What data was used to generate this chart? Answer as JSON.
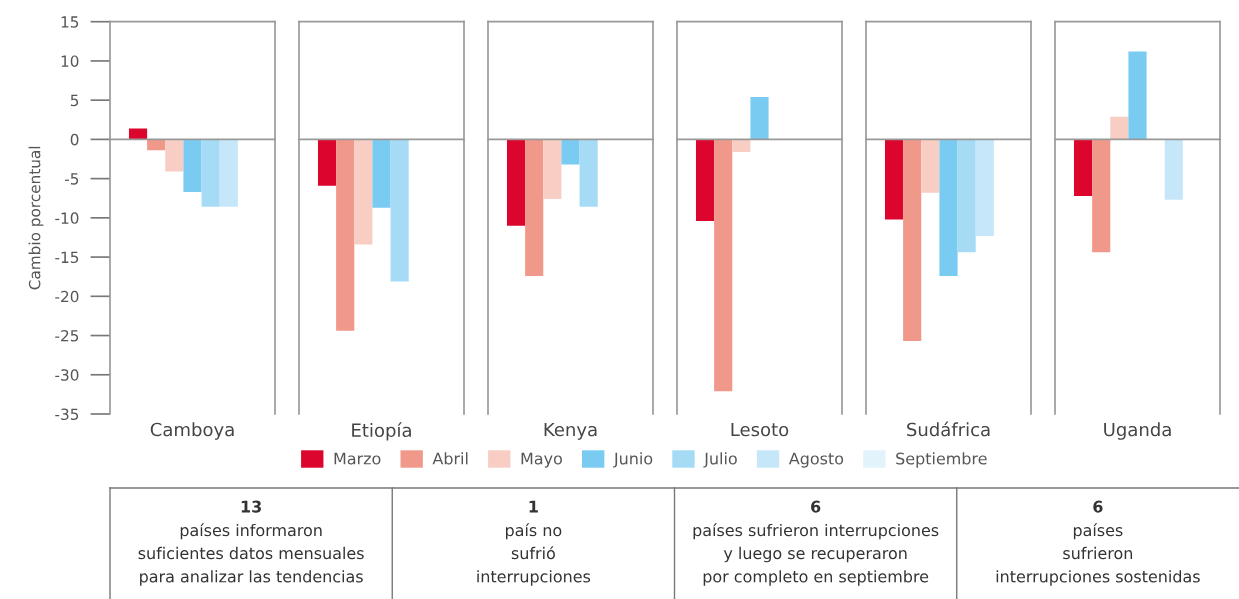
{
  "chart_data": [
    {
      "type": "bar",
      "categories": [
        "Camboya"
      ],
      "ylabel": "Cambio porcentual",
      "ylim": [
        -35,
        15
      ],
      "yticks": [
        -35,
        -30,
        -25,
        -20,
        -15,
        -10,
        -5,
        0,
        5,
        10,
        15
      ],
      "legend": "bottom",
      "ref_lines": [
        {
          "axis": "y",
          "value": 0,
          "color": "#999999"
        }
      ],
      "annotations": [
        "13\npaíses informaron\nsuficientes datos mensuales\npara analizar las tendencias",
        "1\npaís no\nsufrió\ninterrupciones",
        "6\npaíses sufrieron interrupciones\ny luego se recuperaron\npor completo en septiembre",
        "6\npaíses\nsufrieron\ninterrupciones sostenidas"
      ],
      "series": [
        {
          "name": "Marzo",
          "color": "#dc052d",
          "values": [
            1.4
          ]
        },
        {
          "name": "Abril",
          "color": "#f0998a",
          "values": [
            -1.4
          ]
        },
        {
          "name": "Mayo",
          "color": "#f8cdc4",
          "values": [
            -4.1
          ]
        },
        {
          "name": "Junio",
          "color": "#79cbf2",
          "values": [
            -6.7
          ]
        },
        {
          "name": "Julio",
          "color": "#a6dbf6",
          "values": [
            -8.6
          ]
        },
        {
          "name": "Agosto",
          "color": "#c6e7f9",
          "values": [
            -8.6
          ]
        },
        {
          "name": "Septiembre",
          "color": "#e2f3fc",
          "values": [
            null
          ]
        }
      ]
    },
    {
      "type": "bar",
      "categories": [
        "Etiopía"
      ],
      "ylim": [
        -35,
        15
      ],
      "tick_labels": "x",
      "ref_lines": [
        {
          "axis": "y",
          "value": 0,
          "color": "#999999"
        }
      ],
      "series": [
        {
          "color": "#dc052d",
          "values": [
            -5.9
          ]
        },
        {
          "color": "#f0998a",
          "values": [
            -24.4
          ]
        },
        {
          "color": "#f8cdc4",
          "values": [
            -13.4
          ]
        },
        {
          "color": "#79cbf2",
          "values": [
            -8.7
          ]
        },
        {
          "color": "#a6dbf6",
          "values": [
            -18.1
          ]
        },
        {
          "color": "#c6e7f9",
          "values": [
            null
          ]
        },
        {
          "color": "#e2f3fc",
          "values": [
            null
          ]
        }
      ]
    },
    {
      "type": "bar",
      "categories": [
        "Kenya"
      ],
      "ylim": [
        -35,
        15
      ],
      "tick_labels": "x",
      "ref_lines": [
        {
          "axis": "y",
          "value": 0,
          "color": "#999999"
        }
      ],
      "series": [
        {
          "color": "#dc052d",
          "values": [
            -11.0
          ]
        },
        {
          "color": "#f0998a",
          "values": [
            -17.4
          ]
        },
        {
          "color": "#f8cdc4",
          "values": [
            -7.6
          ]
        },
        {
          "color": "#79cbf2",
          "values": [
            -3.2
          ]
        },
        {
          "color": "#a6dbf6",
          "values": [
            -8.6
          ]
        },
        {
          "color": "#c6e7f9",
          "values": [
            null
          ]
        },
        {
          "color": "#e2f3fc",
          "values": [
            null
          ]
        }
      ]
    },
    {
      "type": "bar",
      "categories": [
        "Lesoto"
      ],
      "ylim": [
        -35,
        15
      ],
      "tick_labels": "x",
      "ref_lines": [
        {
          "axis": "y",
          "value": 0,
          "color": "#999999"
        }
      ],
      "series": [
        {
          "color": "#dc052d",
          "values": [
            -10.4
          ]
        },
        {
          "color": "#f0998a",
          "values": [
            -32.1
          ]
        },
        {
          "color": "#f8cdc4",
          "values": [
            -1.6
          ]
        },
        {
          "color": "#79cbf2",
          "values": [
            5.4
          ]
        },
        {
          "color": "#a6dbf6",
          "values": [
            null
          ]
        },
        {
          "color": "#c6e7f9",
          "values": [
            null
          ]
        },
        {
          "color": "#e2f3fc",
          "values": [
            null
          ]
        }
      ]
    },
    {
      "type": "bar",
      "categories": [
        "Sudáfrica"
      ],
      "ylim": [
        -35,
        15
      ],
      "tick_labels": "x",
      "ref_lines": [
        {
          "axis": "y",
          "value": 0,
          "color": "#999999"
        }
      ],
      "series": [
        {
          "color": "#dc052d",
          "values": [
            -10.2
          ]
        },
        {
          "color": "#f0998a",
          "values": [
            -25.7
          ]
        },
        {
          "color": "#f8cdc4",
          "values": [
            -6.8
          ]
        },
        {
          "color": "#79cbf2",
          "values": [
            -17.4
          ]
        },
        {
          "color": "#a6dbf6",
          "values": [
            -14.4
          ]
        },
        {
          "color": "#c6e7f9",
          "values": [
            -12.3
          ]
        },
        {
          "color": "#e2f3fc",
          "values": [
            null
          ]
        }
      ]
    },
    {
      "type": "bar",
      "categories": [
        "Uganda"
      ],
      "ylim": [
        -35,
        15
      ],
      "tick_labels": "x",
      "ref_lines": [
        {
          "axis": "y",
          "value": 0,
          "color": "#999999"
        }
      ],
      "series": [
        {
          "color": "#dc052d",
          "values": [
            -7.2
          ]
        },
        {
          "color": "#f0998a",
          "values": [
            -14.4
          ]
        },
        {
          "color": "#f8cdc4",
          "values": [
            2.9
          ]
        },
        {
          "color": "#79cbf2",
          "values": [
            11.2
          ]
        },
        {
          "color": "#a6dbf6",
          "values": [
            null
          ]
        },
        {
          "color": "#c6e7f9",
          "values": [
            -7.7
          ]
        },
        {
          "color": "#e2f3fc",
          "values": [
            null
          ]
        }
      ]
    }
  ]
}
